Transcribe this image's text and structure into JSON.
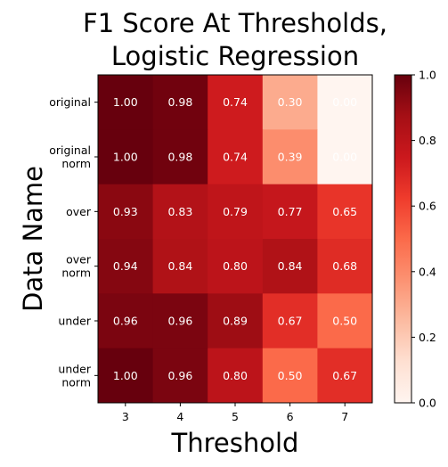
{
  "chart_data": {
    "type": "heatmap",
    "title": [
      "F1 Score At Thresholds,",
      "Logistic Regression"
    ],
    "xlabel": "Threshold",
    "ylabel": "Data Name",
    "x_categories": [
      "3",
      "4",
      "5",
      "6",
      "7"
    ],
    "y_categories": [
      [
        "original"
      ],
      [
        "original",
        "norm"
      ],
      [
        "over"
      ],
      [
        "over",
        "norm"
      ],
      [
        "under"
      ],
      [
        "under",
        "norm"
      ]
    ],
    "values": [
      [
        1.0,
        0.98,
        0.74,
        0.3,
        0.0
      ],
      [
        1.0,
        0.98,
        0.74,
        0.39,
        0.0
      ],
      [
        0.93,
        0.83,
        0.79,
        0.77,
        0.65
      ],
      [
        0.94,
        0.84,
        0.8,
        0.84,
        0.68
      ],
      [
        0.96,
        0.96,
        0.89,
        0.67,
        0.5
      ],
      [
        1.0,
        0.96,
        0.8,
        0.5,
        0.67
      ]
    ],
    "value_format_decimals": 2,
    "colormap": "Reds",
    "colorbar": {
      "range": [
        0.0,
        1.0
      ],
      "ticks": [
        "0.0",
        "0.2",
        "0.4",
        "0.6",
        "0.8",
        "1.0"
      ],
      "placement": "right"
    },
    "annotation_color": "#ffffff"
  }
}
